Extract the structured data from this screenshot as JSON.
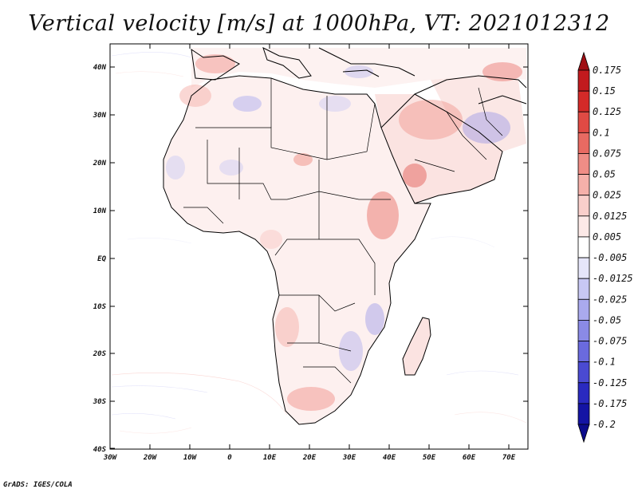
{
  "title": "Vertical velocity [m/s] at 1000hPa, VT: 2021012312",
  "footer": "GrADS: IGES/COLA",
  "map": {
    "lat_labels": [
      "40N",
      "30N",
      "20N",
      "10N",
      "EQ",
      "10S",
      "20S",
      "30S",
      "40S"
    ],
    "lon_labels": [
      "30W",
      "20W",
      "10W",
      "0",
      "10E",
      "20E",
      "30E",
      "40E",
      "50E",
      "60E",
      "70E"
    ]
  },
  "colorbar": {
    "levels": [
      "0.175",
      "0.15",
      "0.125",
      "0.1",
      "0.075",
      "0.05",
      "0.025",
      "0.0125",
      "0.005",
      "-0.005",
      "-0.0125",
      "-0.025",
      "-0.05",
      "-0.075",
      "-0.1",
      "-0.125",
      "-0.175",
      "-0.2"
    ],
    "colors": [
      "#a00f14",
      "#c21a1e",
      "#d42a28",
      "#e04a44",
      "#e86a62",
      "#ef8d86",
      "#f5b0aa",
      "#f9cfcb",
      "#fce9e7",
      "#ffffff",
      "#e6e6fa",
      "#c8c8f4",
      "#aaaaee",
      "#8a8ae6",
      "#6a6ade",
      "#4a4ad2",
      "#2a2ac0",
      "#1414a4",
      "#0c0c8c"
    ]
  }
}
